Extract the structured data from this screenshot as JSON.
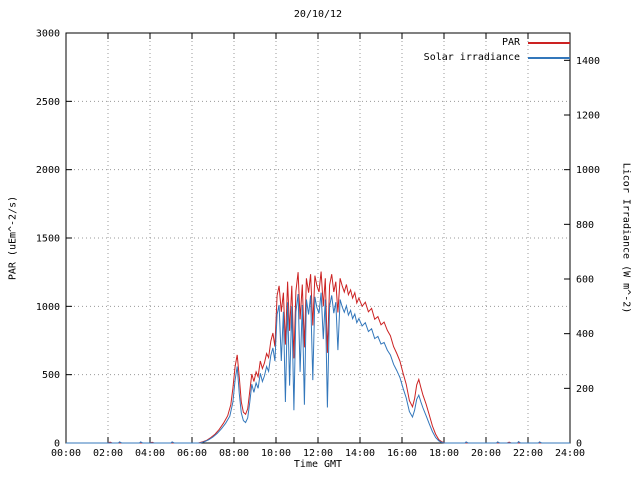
{
  "chart_data": {
    "type": "line",
    "title": "20/10/12",
    "xlabel": "Time GMT",
    "ylabel": "PAR (uEm^-2/s)",
    "y2label": "Licor Irradiance (W m^-2)",
    "xlim": [
      0,
      24
    ],
    "ylim": [
      0,
      3000
    ],
    "y2lim": [
      0,
      1500
    ],
    "grid": true,
    "legend_position": "top-right",
    "x_ticks": [
      [
        0,
        "00:00"
      ],
      [
        2,
        "02:00"
      ],
      [
        4,
        "04:00"
      ],
      [
        6,
        "06:00"
      ],
      [
        8,
        "08:00"
      ],
      [
        10,
        "10:00"
      ],
      [
        12,
        "12:00"
      ],
      [
        14,
        "14:00"
      ],
      [
        16,
        "16:00"
      ],
      [
        18,
        "18:00"
      ],
      [
        20,
        "20:00"
      ],
      [
        22,
        "22:00"
      ],
      [
        24,
        "24:00"
      ]
    ],
    "y_ticks": [
      [
        0,
        "0"
      ],
      [
        500,
        "500"
      ],
      [
        1000,
        "1000"
      ],
      [
        1500,
        "1500"
      ],
      [
        2000,
        "2000"
      ],
      [
        2500,
        "2500"
      ],
      [
        3000,
        "3000"
      ]
    ],
    "y2_ticks": [
      [
        0,
        "0"
      ],
      [
        200,
        "200"
      ],
      [
        400,
        "400"
      ],
      [
        600,
        "600"
      ],
      [
        800,
        "800"
      ],
      [
        1000,
        "1000"
      ],
      [
        1200,
        "1200"
      ],
      [
        1400,
        "1400"
      ]
    ],
    "series": [
      {
        "name": "PAR",
        "axis": "left",
        "color": "#cc2222",
        "points": [
          [
            0,
            0
          ],
          [
            2.0,
            0
          ],
          [
            2.1,
            6
          ],
          [
            2.2,
            0
          ],
          [
            4.0,
            0
          ],
          [
            4.1,
            5
          ],
          [
            4.2,
            0
          ],
          [
            6.3,
            0
          ],
          [
            6.5,
            8
          ],
          [
            6.7,
            20
          ],
          [
            6.9,
            40
          ],
          [
            7.1,
            65
          ],
          [
            7.3,
            100
          ],
          [
            7.5,
            145
          ],
          [
            7.7,
            200
          ],
          [
            7.85,
            280
          ],
          [
            7.95,
            400
          ],
          [
            8.05,
            560
          ],
          [
            8.15,
            645
          ],
          [
            8.25,
            480
          ],
          [
            8.35,
            300
          ],
          [
            8.45,
            225
          ],
          [
            8.55,
            210
          ],
          [
            8.65,
            250
          ],
          [
            8.75,
            380
          ],
          [
            8.85,
            505
          ],
          [
            8.95,
            450
          ],
          [
            9.05,
            520
          ],
          [
            9.15,
            485
          ],
          [
            9.25,
            600
          ],
          [
            9.35,
            545
          ],
          [
            9.45,
            585
          ],
          [
            9.55,
            655
          ],
          [
            9.65,
            625
          ],
          [
            9.75,
            745
          ],
          [
            9.85,
            805
          ],
          [
            9.95,
            705
          ],
          [
            10.05,
            1080
          ],
          [
            10.15,
            1150
          ],
          [
            10.25,
            960
          ],
          [
            10.35,
            1100
          ],
          [
            10.45,
            720
          ],
          [
            10.55,
            1180
          ],
          [
            10.65,
            820
          ],
          [
            10.75,
            1150
          ],
          [
            10.85,
            620
          ],
          [
            10.95,
            1110
          ],
          [
            11.05,
            1250
          ],
          [
            11.15,
            905
          ],
          [
            11.25,
            1160
          ],
          [
            11.35,
            700
          ],
          [
            11.45,
            1205
          ],
          [
            11.55,
            1100
          ],
          [
            11.65,
            1235
          ],
          [
            11.75,
            860
          ],
          [
            11.85,
            1225
          ],
          [
            11.95,
            1150
          ],
          [
            12.05,
            1105
          ],
          [
            12.15,
            1255
          ],
          [
            12.25,
            1000
          ],
          [
            12.35,
            1205
          ],
          [
            12.45,
            660
          ],
          [
            12.55,
            1155
          ],
          [
            12.65,
            1235
          ],
          [
            12.75,
            1105
          ],
          [
            12.85,
            1180
          ],
          [
            12.95,
            955
          ],
          [
            13.05,
            1205
          ],
          [
            13.15,
            1150
          ],
          [
            13.25,
            1105
          ],
          [
            13.35,
            1160
          ],
          [
            13.45,
            1085
          ],
          [
            13.55,
            1120
          ],
          [
            13.65,
            1060
          ],
          [
            13.75,
            1100
          ],
          [
            13.85,
            1025
          ],
          [
            13.95,
            1060
          ],
          [
            14.1,
            1000
          ],
          [
            14.25,
            1030
          ],
          [
            14.4,
            960
          ],
          [
            14.55,
            985
          ],
          [
            14.7,
            905
          ],
          [
            14.85,
            925
          ],
          [
            15.0,
            865
          ],
          [
            15.15,
            885
          ],
          [
            15.3,
            825
          ],
          [
            15.45,
            785
          ],
          [
            15.6,
            705
          ],
          [
            15.75,
            655
          ],
          [
            15.9,
            600
          ],
          [
            16.05,
            510
          ],
          [
            16.2,
            430
          ],
          [
            16.35,
            310
          ],
          [
            16.5,
            265
          ],
          [
            16.6,
            325
          ],
          [
            16.7,
            425
          ],
          [
            16.8,
            465
          ],
          [
            16.9,
            405
          ],
          [
            17.0,
            350
          ],
          [
            17.15,
            285
          ],
          [
            17.3,
            205
          ],
          [
            17.45,
            125
          ],
          [
            17.6,
            65
          ],
          [
            17.75,
            25
          ],
          [
            17.9,
            8
          ],
          [
            18.05,
            0
          ],
          [
            21.0,
            0
          ],
          [
            21.1,
            6
          ],
          [
            21.2,
            0
          ],
          [
            24,
            0
          ]
        ]
      },
      {
        "name": "Solar irradiance",
        "axis": "right",
        "color": "#3377bb",
        "points": [
          [
            0,
            0
          ],
          [
            2.5,
            0
          ],
          [
            2.55,
            4
          ],
          [
            2.65,
            0
          ],
          [
            3.5,
            0
          ],
          [
            3.55,
            4
          ],
          [
            3.65,
            0
          ],
          [
            5.0,
            0
          ],
          [
            5.05,
            4
          ],
          [
            5.15,
            0
          ],
          [
            6.4,
            0
          ],
          [
            6.6,
            5
          ],
          [
            6.8,
            12
          ],
          [
            7.0,
            22
          ],
          [
            7.2,
            35
          ],
          [
            7.4,
            52
          ],
          [
            7.6,
            72
          ],
          [
            7.8,
            98
          ],
          [
            7.95,
            150
          ],
          [
            8.05,
            230
          ],
          [
            8.15,
            280
          ],
          [
            8.25,
            180
          ],
          [
            8.35,
            110
          ],
          [
            8.45,
            82
          ],
          [
            8.55,
            75
          ],
          [
            8.65,
            92
          ],
          [
            8.75,
            150
          ],
          [
            8.85,
            215
          ],
          [
            8.95,
            185
          ],
          [
            9.05,
            220
          ],
          [
            9.15,
            200
          ],
          [
            9.25,
            255
          ],
          [
            9.35,
            225
          ],
          [
            9.45,
            245
          ],
          [
            9.55,
            280
          ],
          [
            9.65,
            262
          ],
          [
            9.75,
            320
          ],
          [
            9.85,
            348
          ],
          [
            9.95,
            300
          ],
          [
            10.05,
            470
          ],
          [
            10.15,
            505
          ],
          [
            10.25,
            300
          ],
          [
            10.35,
            480
          ],
          [
            10.45,
            150
          ],
          [
            10.55,
            515
          ],
          [
            10.65,
            210
          ],
          [
            10.75,
            500
          ],
          [
            10.85,
            120
          ],
          [
            10.95,
            480
          ],
          [
            11.05,
            545
          ],
          [
            11.15,
            260
          ],
          [
            11.25,
            505
          ],
          [
            11.35,
            140
          ],
          [
            11.45,
            525
          ],
          [
            11.55,
            470
          ],
          [
            11.65,
            540
          ],
          [
            11.75,
            230
          ],
          [
            11.85,
            535
          ],
          [
            11.95,
            495
          ],
          [
            12.05,
            475
          ],
          [
            12.15,
            550
          ],
          [
            12.25,
            380
          ],
          [
            12.35,
            525
          ],
          [
            12.45,
            130
          ],
          [
            12.55,
            500
          ],
          [
            12.65,
            540
          ],
          [
            12.75,
            475
          ],
          [
            12.85,
            515
          ],
          [
            12.95,
            340
          ],
          [
            13.05,
            525
          ],
          [
            13.15,
            498
          ],
          [
            13.25,
            478
          ],
          [
            13.35,
            502
          ],
          [
            13.45,
            468
          ],
          [
            13.55,
            485
          ],
          [
            13.65,
            455
          ],
          [
            13.75,
            472
          ],
          [
            13.85,
            440
          ],
          [
            13.95,
            455
          ],
          [
            14.1,
            428
          ],
          [
            14.25,
            440
          ],
          [
            14.4,
            408
          ],
          [
            14.55,
            418
          ],
          [
            14.7,
            382
          ],
          [
            14.85,
            390
          ],
          [
            15.0,
            362
          ],
          [
            15.15,
            368
          ],
          [
            15.3,
            340
          ],
          [
            15.45,
            322
          ],
          [
            15.6,
            288
          ],
          [
            15.75,
            265
          ],
          [
            15.9,
            240
          ],
          [
            16.05,
            200
          ],
          [
            16.2,
            165
          ],
          [
            16.35,
            115
          ],
          [
            16.5,
            95
          ],
          [
            16.6,
            120
          ],
          [
            16.7,
            160
          ],
          [
            16.8,
            175
          ],
          [
            16.9,
            150
          ],
          [
            17.0,
            128
          ],
          [
            17.15,
            100
          ],
          [
            17.3,
            70
          ],
          [
            17.45,
            42
          ],
          [
            17.6,
            20
          ],
          [
            17.75,
            8
          ],
          [
            17.9,
            2
          ],
          [
            18.05,
            0
          ],
          [
            19.0,
            0
          ],
          [
            19.05,
            4
          ],
          [
            19.15,
            0
          ],
          [
            20.5,
            0
          ],
          [
            20.55,
            4
          ],
          [
            20.65,
            0
          ],
          [
            21.5,
            0
          ],
          [
            21.55,
            5
          ],
          [
            21.65,
            0
          ],
          [
            22.5,
            0
          ],
          [
            22.55,
            4
          ],
          [
            22.65,
            0
          ],
          [
            24,
            0
          ]
        ]
      }
    ]
  }
}
